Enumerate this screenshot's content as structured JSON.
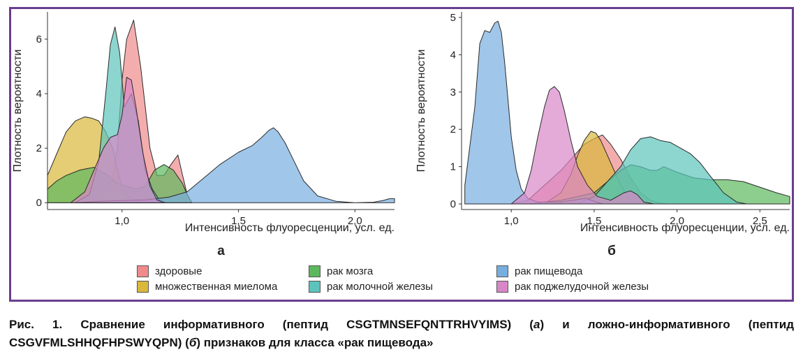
{
  "chart_data": [
    {
      "type": "area",
      "panel_label": "а",
      "xlabel": "Интенсивность флуоресценции, усл. ед.",
      "ylabel": "Плотность вероятности",
      "xlim": [
        0.68,
        2.17
      ],
      "ylim": [
        -0.25,
        7.0
      ],
      "xticks": [
        1.0,
        1.5,
        2.0
      ],
      "xtick_labels": [
        "1,0",
        "1,5",
        "2,0"
      ],
      "yticks": [
        0,
        2,
        4,
        6
      ],
      "ytick_labels": [
        "0",
        "2",
        "4",
        "6"
      ],
      "grid": false,
      "series": [
        {
          "name": "здоровые",
          "color": "#f08a8a",
          "x": [
            0.8,
            0.88,
            0.95,
            0.98,
            1.0,
            1.02,
            1.05,
            1.08,
            1.12,
            1.15,
            1.18,
            1.21,
            1.24,
            1.26,
            1.28,
            1.3
          ],
          "y": [
            0,
            0.1,
            0.6,
            2.0,
            4.5,
            6.0,
            6.7,
            5.0,
            2.0,
            1.0,
            1.0,
            1.4,
            1.75,
            1.0,
            0.3,
            0
          ]
        },
        {
          "name": "множественная миелома",
          "color": "#d9b83a",
          "x": [
            0.68,
            0.72,
            0.76,
            0.8,
            0.84,
            0.87,
            0.9,
            0.93,
            0.96,
            0.98,
            1.0,
            1.03,
            1.06,
            1.08
          ],
          "y": [
            1.0,
            1.8,
            2.6,
            3.0,
            3.15,
            3.1,
            3.0,
            2.6,
            2.0,
            1.2,
            0.6,
            0.2,
            0.05,
            0
          ]
        },
        {
          "name": "рак мозга",
          "color": "#5cb85c",
          "x": [
            0.68,
            0.72,
            0.76,
            0.82,
            0.88,
            0.94,
            0.98,
            1.02,
            1.06,
            1.1,
            1.14,
            1.18,
            1.22,
            1.26,
            1.28,
            1.3
          ],
          "y": [
            0.5,
            0.8,
            1.0,
            1.2,
            1.3,
            1.0,
            0.7,
            0.6,
            0.5,
            0.6,
            1.2,
            1.4,
            1.2,
            0.7,
            0.3,
            0
          ]
        },
        {
          "name": "рак молочной железы",
          "color": "#5cc4bc",
          "x": [
            0.8,
            0.86,
            0.9,
            0.93,
            0.95,
            0.97,
            0.99,
            1.01,
            1.04,
            1.07,
            1.1,
            1.13,
            1.16,
            1.19
          ],
          "y": [
            0,
            0.3,
            1.5,
            4.0,
            5.8,
            6.45,
            5.5,
            3.5,
            4.0,
            3.0,
            1.2,
            0.5,
            0.1,
            0
          ]
        },
        {
          "name": "рак пищевода",
          "color": "#77aee0",
          "x": [
            0.8,
            0.9,
            1.1,
            1.2,
            1.28,
            1.35,
            1.42,
            1.5,
            1.56,
            1.6,
            1.63,
            1.65,
            1.67,
            1.7,
            1.74,
            1.78,
            1.84,
            1.92,
            2.0,
            2.08,
            2.12,
            2.15,
            2.17
          ],
          "y": [
            0,
            0.05,
            0.1,
            0.2,
            0.4,
            0.9,
            1.4,
            1.85,
            2.1,
            2.4,
            2.65,
            2.75,
            2.6,
            2.2,
            1.5,
            0.8,
            0.25,
            0.05,
            0,
            0.02,
            0.08,
            0.15,
            0.15
          ]
        },
        {
          "name": "рак поджелудочной железы",
          "color": "#d986c8",
          "x": [
            0.78,
            0.84,
            0.88,
            0.92,
            0.95,
            0.98,
            1.0,
            1.02,
            1.04,
            1.06,
            1.09,
            1.12,
            1.15,
            1.18
          ],
          "y": [
            0,
            0.4,
            1.2,
            2.0,
            2.4,
            2.5,
            3.2,
            4.6,
            4.5,
            3.5,
            1.8,
            0.6,
            0.1,
            0
          ]
        }
      ]
    },
    {
      "type": "area",
      "panel_label": "б",
      "xlabel": "Интенсивность флуоресценции, усл. ед.",
      "ylabel": "Плотность вероятности",
      "xlim": [
        0.7,
        2.68
      ],
      "ylim": [
        -0.15,
        5.15
      ],
      "xticks": [
        1.0,
        1.5,
        2.0,
        2.5
      ],
      "xtick_labels": [
        "1,0",
        "1,5",
        "2,0",
        "2,5"
      ],
      "yticks": [
        0,
        1,
        2,
        3,
        4,
        5
      ],
      "ytick_labels": [
        "0",
        "1",
        "2",
        "3",
        "4",
        "5"
      ],
      "grid": false,
      "series": [
        {
          "name": "здоровые",
          "color": "#f08a8a",
          "x": [
            1.0,
            1.1,
            1.2,
            1.3,
            1.38,
            1.44,
            1.5,
            1.55,
            1.6,
            1.66,
            1.72,
            1.78,
            1.84,
            1.9,
            1.95
          ],
          "y": [
            0,
            0.1,
            0.5,
            0.9,
            1.3,
            1.6,
            1.75,
            1.85,
            1.6,
            1.2,
            0.7,
            0.3,
            0.1,
            0.02,
            0
          ]
        },
        {
          "name": "множественная миелома",
          "color": "#d9b83a",
          "x": [
            1.2,
            1.3,
            1.36,
            1.4,
            1.44,
            1.48,
            1.51,
            1.54,
            1.58,
            1.62,
            1.66,
            1.7,
            1.74
          ],
          "y": [
            0,
            0.3,
            0.8,
            1.3,
            1.7,
            1.95,
            1.9,
            1.7,
            1.3,
            0.9,
            0.5,
            0.2,
            0
          ]
        },
        {
          "name": "рак мозга",
          "color": "#5cb85c",
          "x": [
            1.1,
            1.3,
            1.5,
            1.58,
            1.66,
            1.72,
            1.78,
            1.84,
            1.88,
            1.92,
            2.0,
            2.1,
            2.2,
            2.3,
            2.4,
            2.5,
            2.6,
            2.68
          ],
          "y": [
            0,
            0.1,
            0.3,
            0.6,
            0.9,
            1.05,
            1.0,
            0.9,
            0.9,
            1.0,
            0.85,
            0.7,
            0.65,
            0.65,
            0.6,
            0.45,
            0.3,
            0.2
          ]
        },
        {
          "name": "рак молочной железы",
          "color": "#5cc4bc",
          "x": [
            1.4,
            1.5,
            1.58,
            1.66,
            1.72,
            1.78,
            1.84,
            1.9,
            1.96,
            2.02,
            2.08,
            2.14,
            2.2,
            2.28,
            2.36,
            2.42
          ],
          "y": [
            0,
            0.2,
            0.6,
            1.0,
            1.45,
            1.75,
            1.8,
            1.7,
            1.65,
            1.5,
            1.35,
            1.1,
            0.75,
            0.3,
            0.05,
            0
          ]
        },
        {
          "name": "рак пищевода",
          "color": "#77aee0",
          "x": [
            0.72,
            0.74,
            0.78,
            0.81,
            0.84,
            0.87,
            0.9,
            0.92,
            0.94,
            0.96,
            0.98,
            1.0,
            1.03,
            1.06,
            1.1,
            1.16,
            1.3,
            1.45,
            1.55
          ],
          "y": [
            0.5,
            1.2,
            2.6,
            4.3,
            4.65,
            4.6,
            4.85,
            4.9,
            4.6,
            3.8,
            2.8,
            1.8,
            0.9,
            0.4,
            0.15,
            0.05,
            0.05,
            0.15,
            0
          ]
        },
        {
          "name": "рак поджелудочной железы",
          "color": "#d986c8",
          "x": [
            1.0,
            1.08,
            1.12,
            1.16,
            1.2,
            1.23,
            1.26,
            1.29,
            1.32,
            1.36,
            1.4,
            1.46,
            1.52,
            1.6,
            1.68,
            1.72,
            1.76,
            1.8,
            1.86
          ],
          "y": [
            0,
            0.3,
            0.9,
            1.8,
            2.6,
            3.05,
            3.15,
            3.0,
            2.5,
            1.7,
            1.0,
            0.5,
            0.2,
            0.1,
            0.3,
            0.35,
            0.25,
            0.05,
            0
          ]
        }
      ]
    }
  ],
  "legend": {
    "items": [
      {
        "label": "здоровые",
        "color": "#f08a8a"
      },
      {
        "label": "множественная миелома",
        "color": "#d9b83a"
      },
      {
        "label": "рак мозга",
        "color": "#5cb85c"
      },
      {
        "label": "рак молочной железы",
        "color": "#5cc4bc"
      },
      {
        "label": "рак пищевода",
        "color": "#77aee0"
      },
      {
        "label": "рак поджелудочной железы",
        "color": "#d986c8"
      }
    ]
  },
  "caption": {
    "prefix": "Рис. 1. Сравнение информативного (пептид CSGTMNSEFQNTTRHVYIMS) (",
    "a": "а",
    "middle": ") и ложно-информативного (пептид CSGVFMLSHHQFHPSWYQPN) (",
    "b": "б",
    "suffix": ") признаков для класса «рак пищевода»"
  },
  "frame_color": "#6b3d8f"
}
